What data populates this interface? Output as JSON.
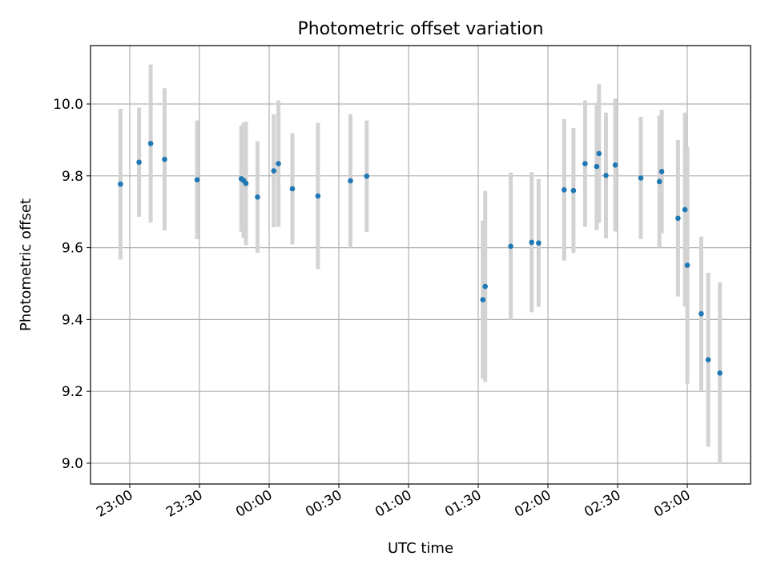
{
  "chart_data": {
    "type": "scatter",
    "title": "Photometric offset variation",
    "xlabel": "UTC time",
    "ylabel": "Photometric offset",
    "x_tick_labels": [
      "23:00",
      "23:30",
      "00:00",
      "00:30",
      "01:00",
      "01:30",
      "02:00",
      "02:30",
      "03:00"
    ],
    "y_tick_labels": [
      "9.0",
      "9.2",
      "9.4",
      "9.6",
      "9.8",
      "10.0"
    ],
    "grid": true,
    "marker_color": "#1f77b4",
    "errorbar_color": "#d3d3d3",
    "series": [
      {
        "points": [
          {
            "x": "22:56",
            "y": 9.777,
            "err": 0.21
          },
          {
            "x": "23:04",
            "y": 9.838,
            "err": 0.152
          },
          {
            "x": "23:09",
            "y": 9.89,
            "err": 0.22
          },
          {
            "x": "23:15",
            "y": 9.846,
            "err": 0.198
          },
          {
            "x": "23:29",
            "y": 9.789,
            "err": 0.165
          },
          {
            "x": "23:48",
            "y": 9.792,
            "err": 0.148
          },
          {
            "x": "23:49",
            "y": 9.787,
            "err": 0.16
          },
          {
            "x": "23:50",
            "y": 9.779,
            "err": 0.172
          },
          {
            "x": "23:55",
            "y": 9.741,
            "err": 0.155
          },
          {
            "x": "00:02",
            "y": 9.814,
            "err": 0.157
          },
          {
            "x": "00:04",
            "y": 9.834,
            "err": 0.176
          },
          {
            "x": "00:10",
            "y": 9.764,
            "err": 0.155
          },
          {
            "x": "00:21",
            "y": 9.744,
            "err": 0.204
          },
          {
            "x": "00:35",
            "y": 9.786,
            "err": 0.186
          },
          {
            "x": "00:42",
            "y": 9.799,
            "err": 0.155
          },
          {
            "x": "01:32",
            "y": 9.455,
            "err": 0.22
          },
          {
            "x": "01:33",
            "y": 9.492,
            "err": 0.266
          },
          {
            "x": "01:44",
            "y": 9.604,
            "err": 0.205
          },
          {
            "x": "01:53",
            "y": 9.615,
            "err": 0.195
          },
          {
            "x": "01:56",
            "y": 9.613,
            "err": 0.178
          },
          {
            "x": "02:07",
            "y": 9.761,
            "err": 0.197
          },
          {
            "x": "02:11",
            "y": 9.759,
            "err": 0.174
          },
          {
            "x": "02:16",
            "y": 9.834,
            "err": 0.176
          },
          {
            "x": "02:21",
            "y": 9.826,
            "err": 0.177
          },
          {
            "x": "02:22",
            "y": 9.862,
            "err": 0.193
          },
          {
            "x": "02:25",
            "y": 9.801,
            "err": 0.175
          },
          {
            "x": "02:29",
            "y": 9.83,
            "err": 0.185
          },
          {
            "x": "02:40",
            "y": 9.794,
            "err": 0.17
          },
          {
            "x": "02:48",
            "y": 9.784,
            "err": 0.184
          },
          {
            "x": "02:49",
            "y": 9.812,
            "err": 0.172
          },
          {
            "x": "02:56",
            "y": 9.682,
            "err": 0.218
          },
          {
            "x": "02:59",
            "y": 9.706,
            "err": 0.27
          },
          {
            "x": "03:00",
            "y": 9.551,
            "err": 0.33
          },
          {
            "x": "03:06",
            "y": 9.416,
            "err": 0.215
          },
          {
            "x": "03:09",
            "y": 9.288,
            "err": 0.242
          },
          {
            "x": "03:14",
            "y": 9.251,
            "err": 0.253
          }
        ]
      }
    ]
  }
}
